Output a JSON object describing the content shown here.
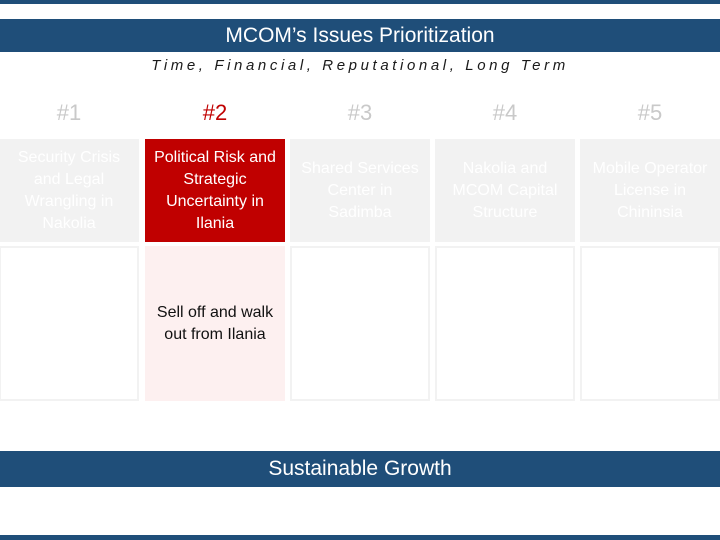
{
  "title": "MCOM’s Issues Prioritization",
  "subtitle": "Time, Financial, Reputational, Long Term",
  "columns": [
    {
      "rank": "#1",
      "issue": "Security Crisis and Legal Wrangling in Nakolia",
      "action": ""
    },
    {
      "rank": "#2",
      "issue": "Political Risk and Strategic Uncertainty in Ilania",
      "action": "Sell off and walk out from Ilania"
    },
    {
      "rank": "#3",
      "issue": "Shared Services Center in Sadimba",
      "action": ""
    },
    {
      "rank": "#4",
      "issue": "Nakolia and MCOM Capital Structure",
      "action": ""
    },
    {
      "rank": "#5",
      "issue": "Mobile Operator License in Chininsia",
      "action": ""
    }
  ],
  "footer": "Sustainable Growth",
  "colors": {
    "brand": "#1f4e79",
    "accent": "#c00000",
    "muted": "#f2f2f2"
  }
}
